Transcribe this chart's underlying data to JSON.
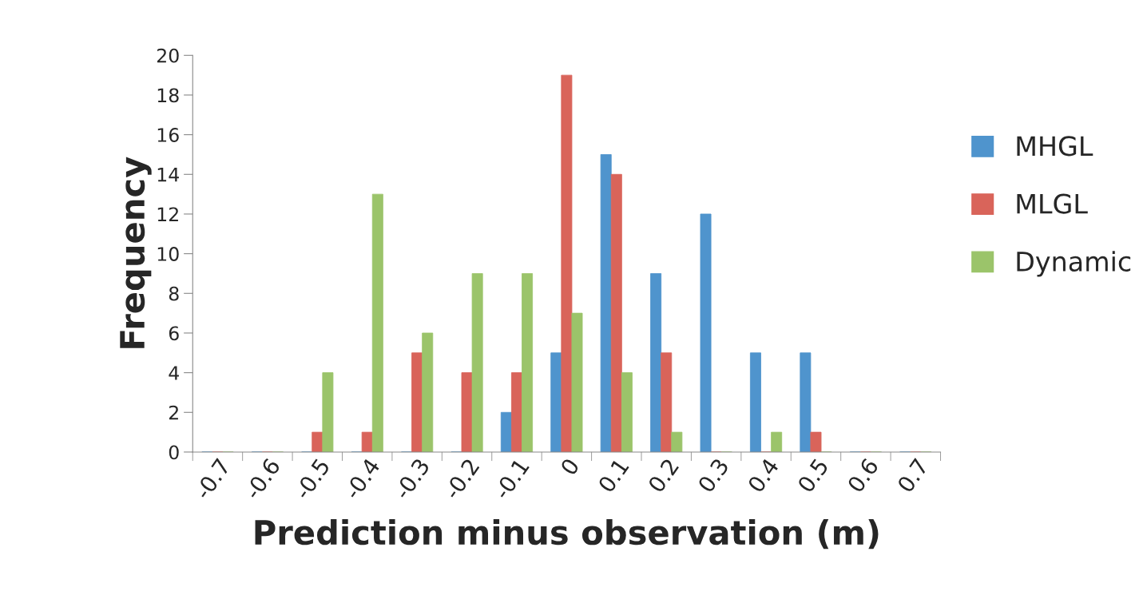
{
  "chart_data": {
    "type": "bar",
    "xlabel": "Prediction minus observation (m)",
    "ylabel": "Frequency",
    "categories": [
      "-0.7",
      "-0.6",
      "-0.5",
      "-0.4",
      "-0.3",
      "-0.2",
      "-0.1",
      "0",
      "0.1",
      "0.2",
      "0.3",
      "0.4",
      "0.5",
      "0.6",
      "0.7"
    ],
    "series": [
      {
        "name": "MHGL",
        "color": "#4f94cd",
        "values": [
          0,
          0,
          0,
          0,
          0,
          0,
          2,
          5,
          15,
          9,
          12,
          5,
          5,
          0,
          0
        ]
      },
      {
        "name": "MLGL",
        "color": "#d9645a",
        "values": [
          0,
          0,
          1,
          1,
          5,
          4,
          4,
          19,
          14,
          5,
          0,
          0,
          1,
          0,
          0
        ]
      },
      {
        "name": "Dynamic",
        "color": "#9bc46a",
        "values": [
          0,
          0,
          4,
          13,
          6,
          9,
          9,
          7,
          4,
          1,
          0,
          1,
          0,
          0,
          0
        ]
      }
    ],
    "ylim": [
      0,
      20
    ],
    "yticks": [
      0,
      2,
      4,
      6,
      8,
      10,
      12,
      14,
      16,
      18,
      20
    ],
    "grid": false,
    "legend": "right"
  }
}
